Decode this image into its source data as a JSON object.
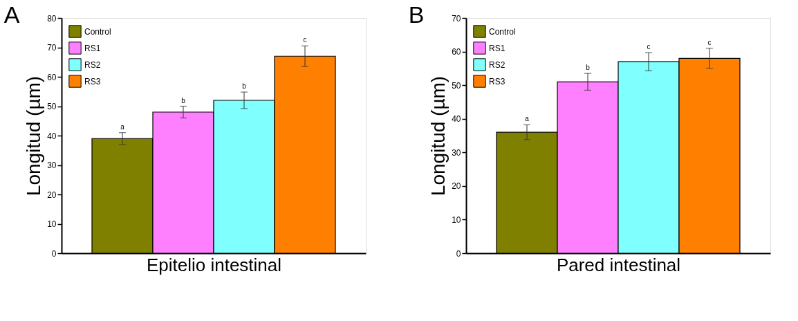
{
  "chart_data": [
    {
      "type": "bar",
      "title": "A",
      "xlabel": "Epitelio intestinal",
      "ylabel": "Longitud (µm)",
      "categories": [
        null
      ],
      "ylim": [
        0,
        80
      ],
      "yticks": [
        0,
        10,
        20,
        30,
        40,
        50,
        60,
        70,
        80
      ],
      "grid": false,
      "legend": "top left",
      "series": [
        {
          "name": "Control",
          "color": "#808000",
          "values": [
            39
          ],
          "errors": [
            2
          ],
          "value_labels": [
            "a"
          ]
        },
        {
          "name": "RS1",
          "color": "#ff80ff",
          "values": [
            48
          ],
          "errors": [
            2
          ],
          "value_labels": [
            "b"
          ]
        },
        {
          "name": "RS2",
          "color": "#80ffff",
          "values": [
            52
          ],
          "errors": [
            2.8
          ],
          "value_labels": [
            "b"
          ]
        },
        {
          "name": "RS3",
          "color": "#ff8000",
          "values": [
            67
          ],
          "errors": [
            3.5
          ],
          "value_labels": [
            "c"
          ]
        }
      ]
    },
    {
      "type": "bar",
      "title": "B",
      "xlabel": "Pared intestinal",
      "ylabel": "Longitud (µm)",
      "categories": [
        null
      ],
      "ylim": [
        0,
        70
      ],
      "yticks": [
        0,
        10,
        20,
        30,
        40,
        50,
        60,
        70
      ],
      "grid": false,
      "legend": "top left",
      "series": [
        {
          "name": "Control",
          "color": "#808000",
          "values": [
            36
          ],
          "errors": [
            2.2
          ],
          "value_labels": [
            "a"
          ]
        },
        {
          "name": "RS1",
          "color": "#ff80ff",
          "values": [
            51
          ],
          "errors": [
            2.5
          ],
          "value_labels": [
            "b"
          ]
        },
        {
          "name": "RS2",
          "color": "#80ffff",
          "values": [
            57
          ],
          "errors": [
            2.7
          ],
          "value_labels": [
            "c"
          ]
        },
        {
          "name": "RS3",
          "color": "#ff8000",
          "values": [
            58
          ],
          "errors": [
            3
          ],
          "value_labels": [
            "c"
          ]
        }
      ]
    }
  ]
}
